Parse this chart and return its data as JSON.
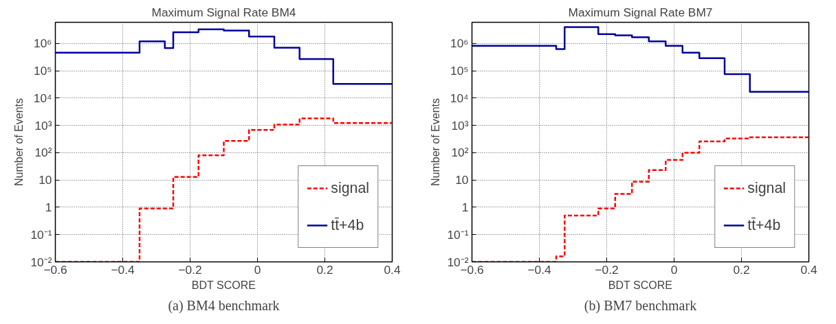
{
  "chart_data": [
    {
      "type": "histogram",
      "title": "Maximum Signal Rate BM4",
      "xlabel": "BDT SCORE",
      "ylabel": "Number of Events",
      "bins": [
        -0.6,
        -0.35,
        -0.275,
        -0.25,
        -0.175,
        -0.1,
        -0.025,
        0.05,
        0.125,
        0.225,
        0.4
      ],
      "series": [
        {
          "name": "signal",
          "color": "#ff0000",
          "line_style": "dashed",
          "values": [
            0.01,
            0.9,
            0.9,
            13,
            80,
            270,
            680,
            1070,
            1800,
            1230
          ]
        },
        {
          "name": "tt̄+4b",
          "color": "#00009c",
          "line_style": "solid",
          "values": [
            460000,
            1200000,
            680000,
            2600000,
            3300000,
            3000000,
            1800000,
            700000,
            270000,
            33000
          ]
        }
      ],
      "xlim": [
        -0.6,
        0.4
      ],
      "ylim": [
        0.01,
        6000000
      ],
      "xticks": [
        {
          "value": -0.6,
          "label": "−0.6"
        },
        {
          "value": -0.4,
          "label": "−0.4"
        },
        {
          "value": -0.2,
          "label": "−0.2"
        },
        0,
        0.2,
        0.4
      ],
      "yticks": [
        {
          "value": 0.01,
          "label": "10⁻²"
        },
        {
          "value": 0.1,
          "label": "10⁻¹"
        },
        1,
        10,
        {
          "value": 100,
          "label": "10²"
        },
        {
          "value": 1000,
          "label": "10³"
        },
        {
          "value": 10000,
          "label": "10⁴"
        },
        {
          "value": 100000,
          "label": "10⁵"
        },
        {
          "value": 1000000,
          "label": "10⁶"
        }
      ],
      "log": "y",
      "grid": true,
      "legend": "bottom right",
      "annotations": [
        "(a) BM4 benchmark"
      ]
    },
    {
      "type": "histogram",
      "title": "Maximum Signal Rate BM7",
      "xlabel": "BDT SCORE",
      "ylabel": "Number of Events",
      "bins": [
        -0.6,
        -0.35,
        -0.325,
        -0.225,
        -0.175,
        -0.125,
        -0.075,
        -0.025,
        0.025,
        0.075,
        0.15,
        0.225,
        0.4
      ],
      "series": [
        {
          "name": "signal",
          "color": "#ff0000",
          "line_style": "dashed",
          "values": [
            0.01,
            0.016,
            0.5,
            0.9,
            3.1,
            8.7,
            23,
            54,
            100,
            260,
            330,
            370
          ]
        },
        {
          "name": "tt̄+4b",
          "color": "#00009c",
          "line_style": "solid",
          "values": [
            820000,
            630000,
            4000000,
            2200000,
            2000000,
            1700000,
            1200000,
            830000,
            460000,
            290000,
            76000,
            17000
          ]
        }
      ],
      "xlim": [
        -0.6,
        0.4
      ],
      "ylim": [
        0.01,
        6000000
      ],
      "xticks": [
        {
          "value": -0.6,
          "label": "−0.6"
        },
        {
          "value": -0.4,
          "label": "−0.4"
        },
        {
          "value": -0.2,
          "label": "−0.2"
        },
        0,
        0.2,
        0.4
      ],
      "yticks": [
        {
          "value": 0.01,
          "label": "10⁻²"
        },
        {
          "value": 0.1,
          "label": "10⁻¹"
        },
        1,
        10,
        {
          "value": 100,
          "label": "10²"
        },
        {
          "value": 1000,
          "label": "10³"
        },
        {
          "value": 10000,
          "label": "10⁴"
        },
        {
          "value": 100000,
          "label": "10⁵"
        },
        {
          "value": 1000000,
          "label": "10⁶"
        }
      ],
      "log": "y",
      "grid": true,
      "legend": "bottom right",
      "annotations": [
        "(b) BM7 benchmark"
      ]
    }
  ]
}
